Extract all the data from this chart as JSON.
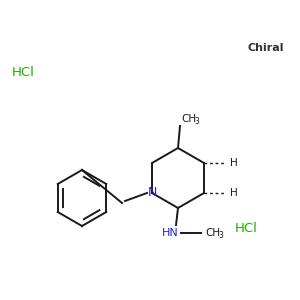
{
  "background_color": "#ffffff",
  "bond_color": "#1a1a1a",
  "nitrogen_color": "#2222cc",
  "green_color": "#22aa00",
  "chiral_text_color": "#333333",
  "hcl_left": "HCl",
  "hcl_right": "HCl",
  "chiral_label": "Chiral",
  "figsize": [
    3.0,
    3.0
  ],
  "dpi": 100
}
